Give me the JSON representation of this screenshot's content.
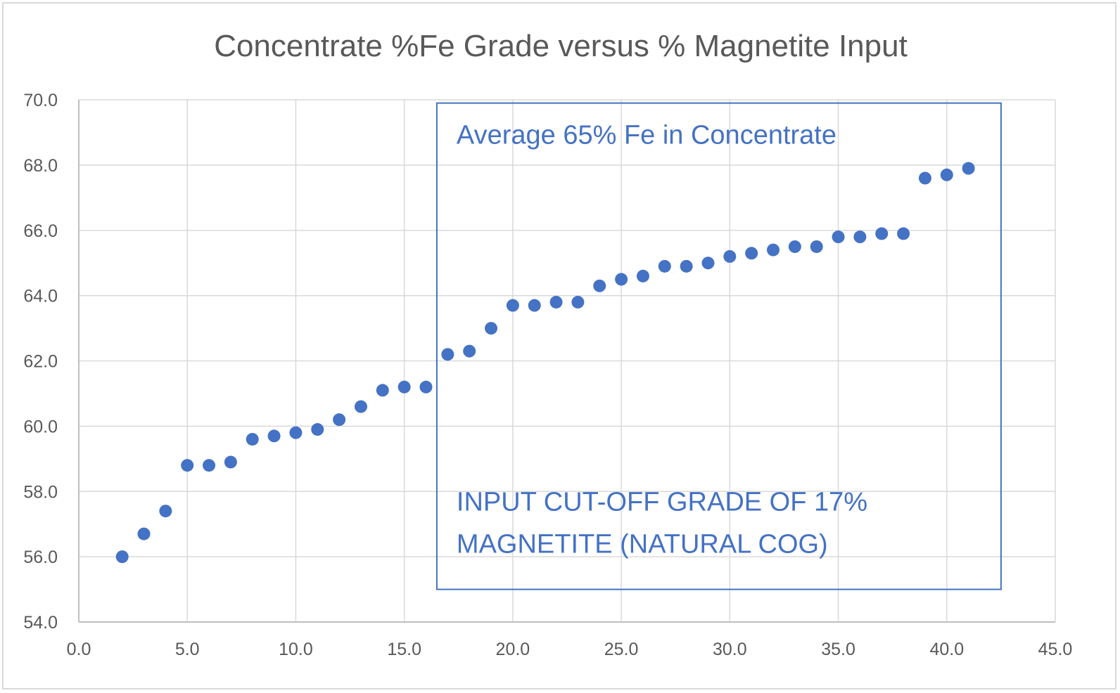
{
  "chart_data": {
    "type": "scatter",
    "title": "Concentrate %Fe Grade versus % Magnetite Input",
    "xlabel": "",
    "ylabel": "",
    "xlim": [
      0,
      45
    ],
    "ylim": [
      54,
      70
    ],
    "x_ticks": [
      "0.0",
      "5.0",
      "10.0",
      "15.0",
      "20.0",
      "25.0",
      "30.0",
      "35.0",
      "40.0",
      "45.0"
    ],
    "y_ticks": [
      "54.0",
      "56.0",
      "58.0",
      "60.0",
      "62.0",
      "64.0",
      "66.0",
      "68.0",
      "70.0"
    ],
    "grid": true,
    "legend": "none",
    "marker_color": "#4472c4",
    "series": [
      {
        "x": [
          2,
          3,
          4,
          5,
          6,
          7,
          8,
          9,
          10,
          11,
          12,
          13,
          14,
          15,
          16,
          17,
          18,
          19,
          20,
          21,
          22,
          23,
          24,
          25,
          26,
          27,
          28,
          29,
          30,
          31,
          32,
          33,
          34,
          35,
          36,
          37,
          38,
          39,
          40,
          41
        ],
        "y": [
          56.0,
          56.7,
          57.4,
          58.8,
          58.8,
          58.9,
          59.6,
          59.7,
          59.8,
          59.9,
          60.2,
          60.6,
          61.1,
          61.2,
          61.2,
          62.2,
          62.3,
          63.0,
          63.7,
          63.7,
          63.8,
          63.8,
          64.3,
          64.5,
          64.6,
          64.9,
          64.9,
          65.0,
          65.2,
          65.3,
          65.4,
          65.5,
          65.5,
          65.8,
          65.8,
          65.9,
          65.9,
          67.6,
          67.7,
          67.9
        ]
      }
    ],
    "annotations": {
      "box_color": "#4472c4",
      "box_x_range": [
        16.5,
        42.5
      ],
      "box_y_range": [
        55.0,
        69.9
      ],
      "top_text": "Average 65% Fe in Concentrate",
      "bottom_text_line1": "INPUT CUT-OFF GRADE OF 17%",
      "bottom_text_line2": "MAGNETITE (NATURAL COG)"
    }
  }
}
